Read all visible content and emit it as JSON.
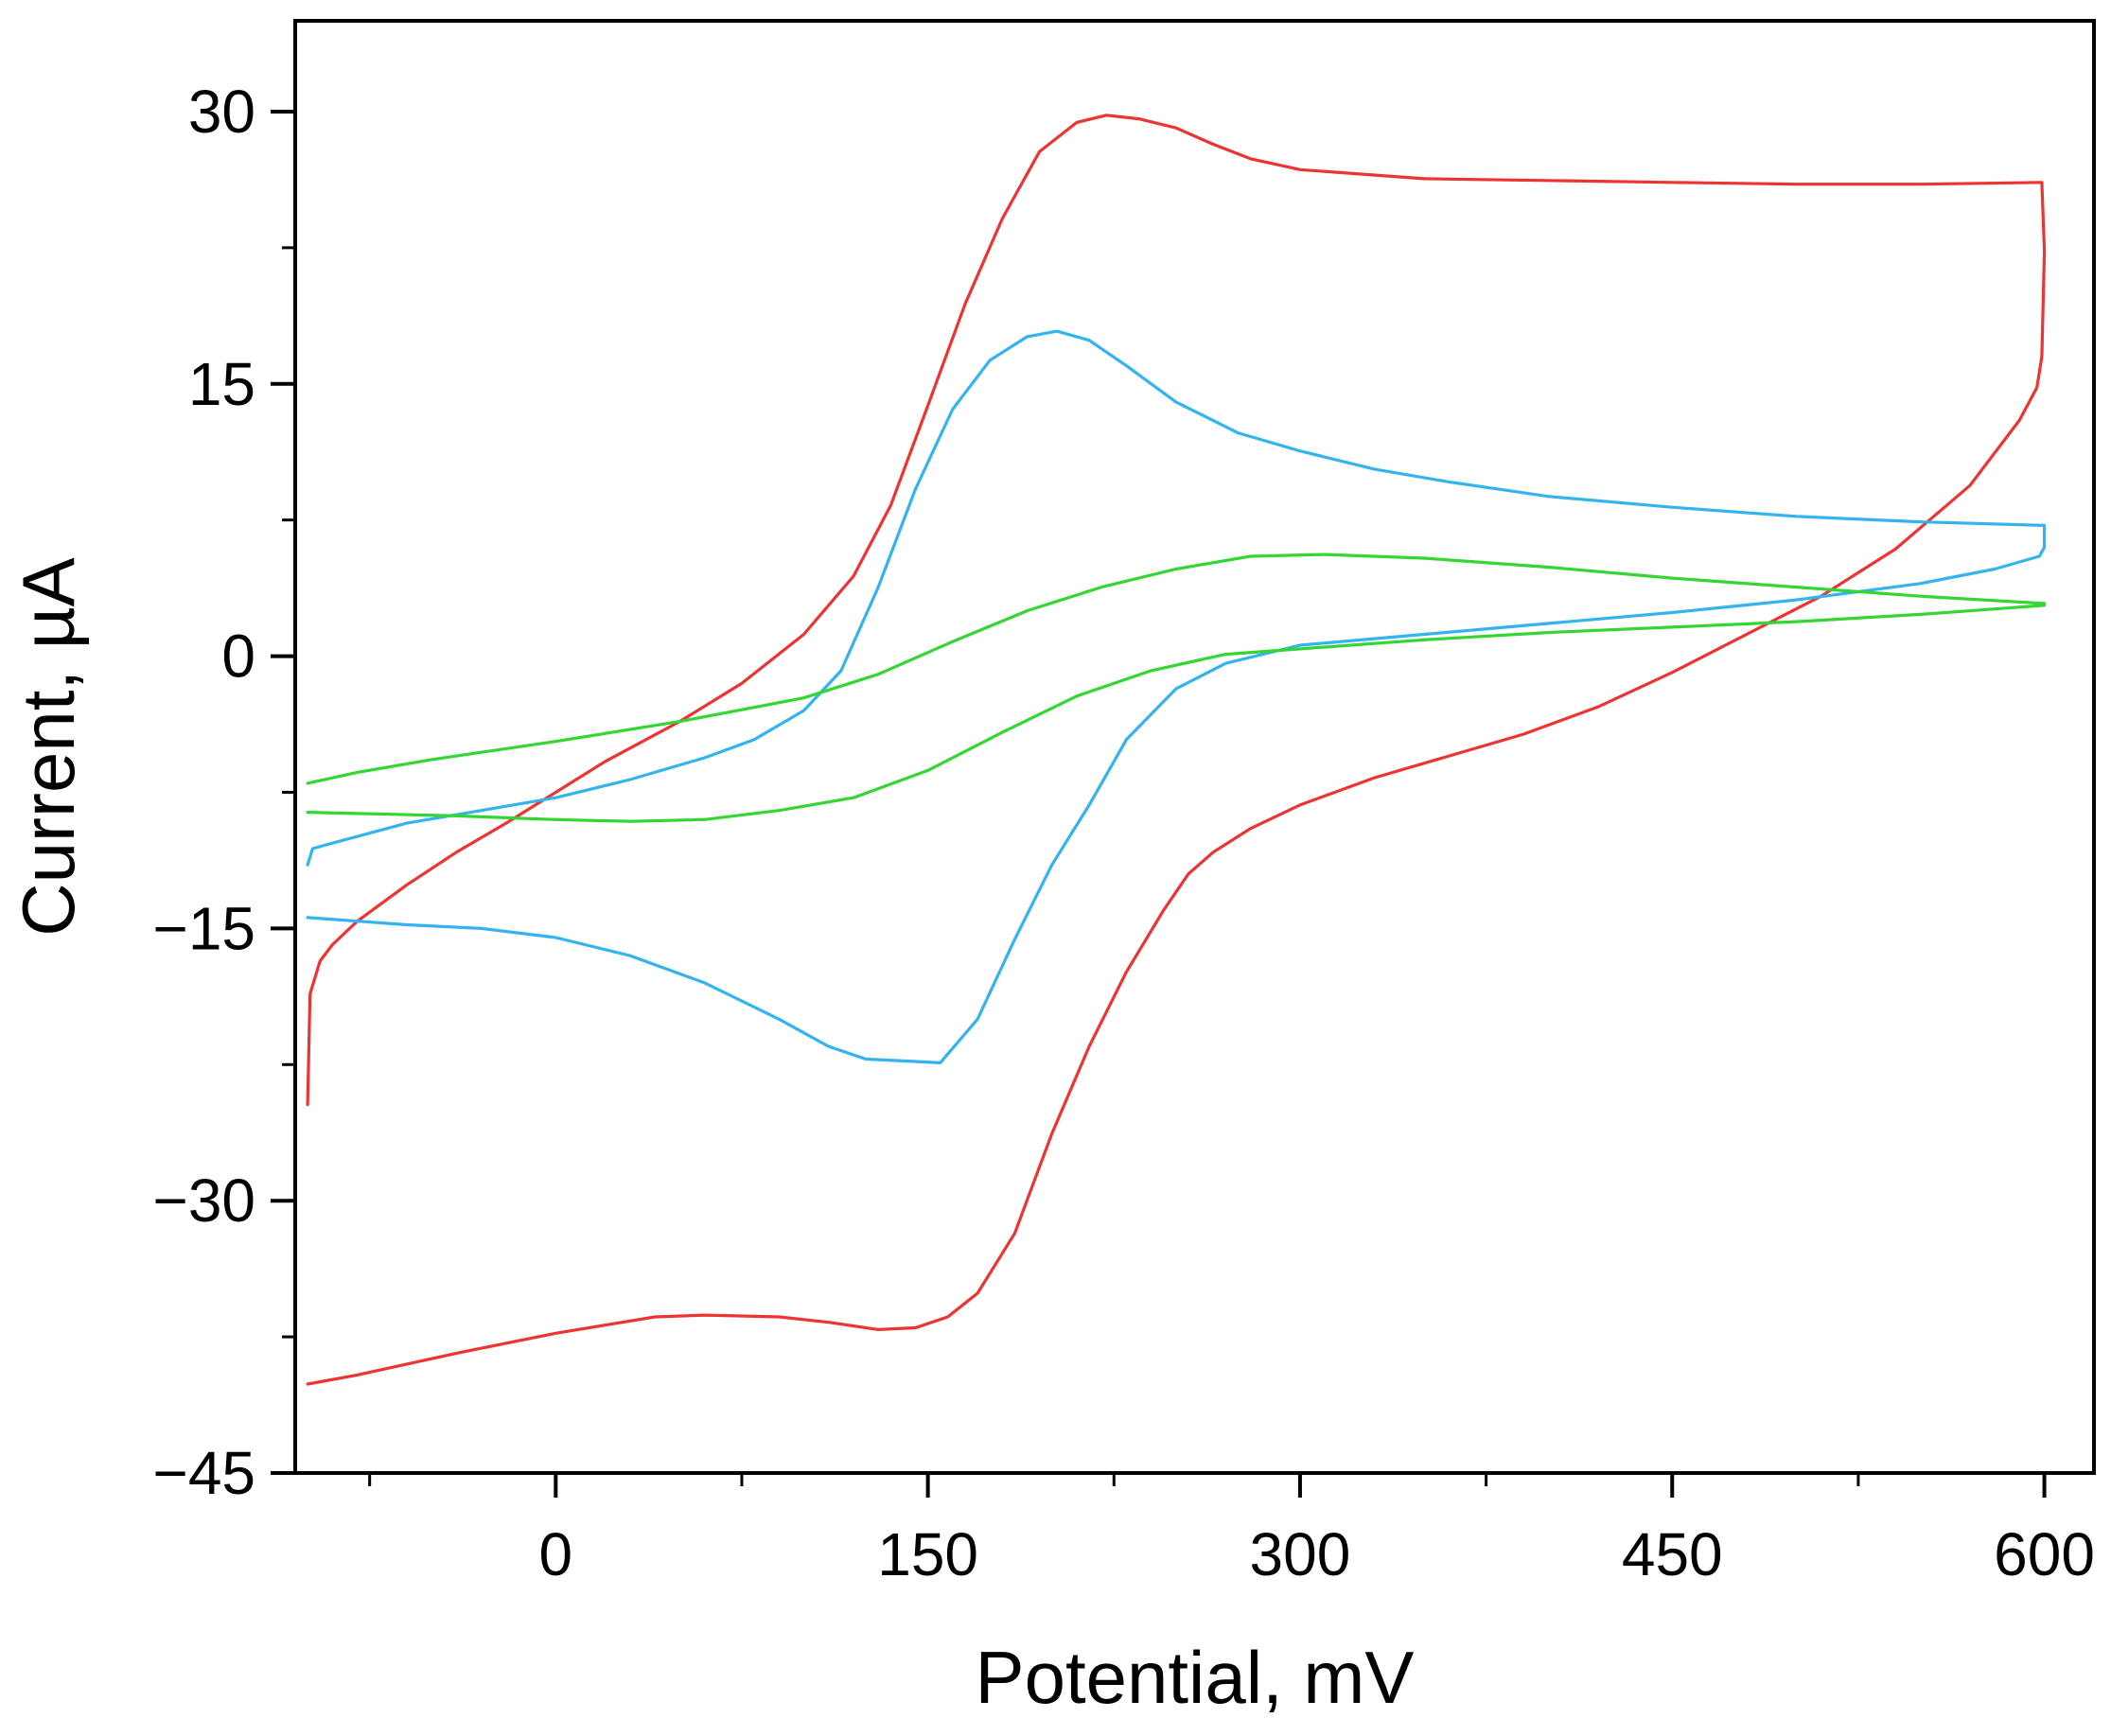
{
  "chart_data": {
    "type": "line",
    "title": "",
    "xlabel": "Potential, mV",
    "ylabel": "Current, µA",
    "xlim": [
      -105,
      620
    ],
    "ylim": [
      -45,
      35
    ],
    "x_ticks": [
      0,
      150,
      300,
      450,
      600
    ],
    "x_tick_labels": [
      "0",
      "150",
      "300",
      "450",
      "600"
    ],
    "x_minor_ticks": [
      -75,
      75,
      225,
      375,
      525
    ],
    "y_ticks": [
      -45,
      -30,
      -15,
      0,
      15,
      30
    ],
    "y_tick_labels": [
      "−45",
      "−30",
      "−15",
      "0",
      "15",
      "30"
    ],
    "y_minor_ticks": [
      -37.5,
      -22.5,
      -7.5,
      7.5,
      22.5
    ],
    "grid": false,
    "legend": "none",
    "series": [
      {
        "name": "red",
        "color": "#ee3333",
        "points": [
          [
            -100,
            -24.7
          ],
          [
            -99,
            -18.6
          ],
          [
            -95,
            -16.8
          ],
          [
            -90,
            -15.9
          ],
          [
            -80,
            -14.6
          ],
          [
            -60,
            -12.6
          ],
          [
            -40,
            -10.8
          ],
          [
            -20,
            -9.2
          ],
          [
            0,
            -7.5
          ],
          [
            20,
            -5.8
          ],
          [
            50,
            -3.6
          ],
          [
            75,
            -1.5
          ],
          [
            100,
            1.2
          ],
          [
            120,
            4.4
          ],
          [
            135,
            8.3
          ],
          [
            150,
            13.8
          ],
          [
            165,
            19.4
          ],
          [
            180,
            24.1
          ],
          [
            195,
            27.8
          ],
          [
            210,
            29.4
          ],
          [
            222,
            29.8
          ],
          [
            235,
            29.6
          ],
          [
            250,
            29.1
          ],
          [
            265,
            28.2
          ],
          [
            280,
            27.4
          ],
          [
            300,
            26.8
          ],
          [
            350,
            26.3
          ],
          [
            400,
            26.2
          ],
          [
            450,
            26.1
          ],
          [
            500,
            26.0
          ],
          [
            550,
            26.0
          ],
          [
            599,
            26.1
          ],
          [
            600,
            22.3
          ],
          [
            599,
            16.5
          ],
          [
            597,
            14.8
          ],
          [
            590,
            13.0
          ],
          [
            570,
            9.4
          ],
          [
            540,
            5.9
          ],
          [
            510,
            3.3
          ],
          [
            480,
            1.2
          ],
          [
            450,
            -0.9
          ],
          [
            420,
            -2.8
          ],
          [
            390,
            -4.3
          ],
          [
            360,
            -5.5
          ],
          [
            330,
            -6.7
          ],
          [
            300,
            -8.2
          ],
          [
            280,
            -9.5
          ],
          [
            265,
            -10.8
          ],
          [
            255,
            -12.0
          ],
          [
            245,
            -14.0
          ],
          [
            230,
            -17.4
          ],
          [
            215,
            -21.5
          ],
          [
            200,
            -26.3
          ],
          [
            185,
            -31.8
          ],
          [
            170,
            -35.1
          ],
          [
            158,
            -36.4
          ],
          [
            145,
            -37.0
          ],
          [
            130,
            -37.1
          ],
          [
            110,
            -36.7
          ],
          [
            90,
            -36.4
          ],
          [
            60,
            -36.3
          ],
          [
            40,
            -36.4
          ],
          [
            0,
            -37.3
          ],
          [
            -40,
            -38.4
          ],
          [
            -80,
            -39.6
          ],
          [
            -100,
            -40.1
          ]
        ]
      },
      {
        "name": "blue",
        "color": "#33b4ee",
        "points": [
          [
            -100,
            -11.5
          ],
          [
            -98,
            -10.6
          ],
          [
            -90,
            -10.3
          ],
          [
            -60,
            -9.2
          ],
          [
            -30,
            -8.5
          ],
          [
            0,
            -7.8
          ],
          [
            30,
            -6.8
          ],
          [
            60,
            -5.6
          ],
          [
            80,
            -4.6
          ],
          [
            100,
            -3.0
          ],
          [
            115,
            -0.8
          ],
          [
            130,
            3.8
          ],
          [
            145,
            9.2
          ],
          [
            160,
            13.6
          ],
          [
            175,
            16.3
          ],
          [
            190,
            17.6
          ],
          [
            202,
            17.9
          ],
          [
            215,
            17.4
          ],
          [
            230,
            16.0
          ],
          [
            250,
            14.0
          ],
          [
            275,
            12.3
          ],
          [
            300,
            11.3
          ],
          [
            330,
            10.3
          ],
          [
            360,
            9.6
          ],
          [
            400,
            8.8
          ],
          [
            450,
            8.2
          ],
          [
            500,
            7.7
          ],
          [
            550,
            7.4
          ],
          [
            600,
            7.2
          ],
          [
            600,
            6.0
          ],
          [
            598,
            5.5
          ],
          [
            580,
            4.8
          ],
          [
            550,
            4.0
          ],
          [
            500,
            3.1
          ],
          [
            450,
            2.4
          ],
          [
            400,
            1.8
          ],
          [
            350,
            1.2
          ],
          [
            300,
            0.6
          ],
          [
            270,
            -0.4
          ],
          [
            250,
            -1.8
          ],
          [
            230,
            -4.6
          ],
          [
            215,
            -8.2
          ],
          [
            200,
            -11.5
          ],
          [
            185,
            -15.6
          ],
          [
            170,
            -20.0
          ],
          [
            155,
            -22.4
          ],
          [
            140,
            -22.3
          ],
          [
            125,
            -22.2
          ],
          [
            110,
            -21.5
          ],
          [
            90,
            -20.0
          ],
          [
            60,
            -18.0
          ],
          [
            30,
            -16.5
          ],
          [
            0,
            -15.5
          ],
          [
            -30,
            -15.0
          ],
          [
            -60,
            -14.8
          ],
          [
            -100,
            -14.4
          ]
        ]
      },
      {
        "name": "green",
        "color": "#33d633",
        "points": [
          [
            -100,
            -7.0
          ],
          [
            -80,
            -6.4
          ],
          [
            -50,
            -5.7
          ],
          [
            0,
            -4.7
          ],
          [
            50,
            -3.6
          ],
          [
            100,
            -2.3
          ],
          [
            130,
            -1.0
          ],
          [
            160,
            0.8
          ],
          [
            190,
            2.5
          ],
          [
            220,
            3.8
          ],
          [
            250,
            4.8
          ],
          [
            280,
            5.5
          ],
          [
            310,
            5.6
          ],
          [
            350,
            5.4
          ],
          [
            400,
            4.9
          ],
          [
            450,
            4.3
          ],
          [
            500,
            3.8
          ],
          [
            550,
            3.3
          ],
          [
            600,
            2.9
          ],
          [
            600,
            2.8
          ],
          [
            580,
            2.6
          ],
          [
            550,
            2.3
          ],
          [
            500,
            1.9
          ],
          [
            450,
            1.6
          ],
          [
            400,
            1.3
          ],
          [
            350,
            0.9
          ],
          [
            300,
            0.4
          ],
          [
            270,
            0.1
          ],
          [
            240,
            -0.8
          ],
          [
            210,
            -2.2
          ],
          [
            180,
            -4.2
          ],
          [
            150,
            -6.3
          ],
          [
            120,
            -7.8
          ],
          [
            90,
            -8.5
          ],
          [
            60,
            -9.0
          ],
          [
            30,
            -9.1
          ],
          [
            0,
            -9.0
          ],
          [
            -40,
            -8.8
          ],
          [
            -100,
            -8.6
          ]
        ]
      }
    ]
  }
}
